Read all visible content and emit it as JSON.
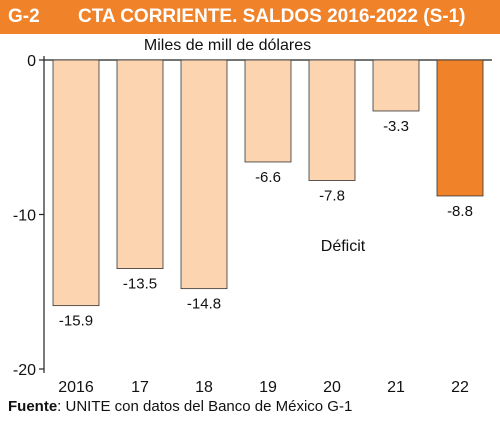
{
  "header": {
    "id": "G-2",
    "title": "CTA CORRIENTE. SALDOS 2016-2022 (S-1)"
  },
  "unit_label": "Miles de mill de dólares",
  "annotation": "Déficit",
  "source": {
    "label": "Fuente",
    "text": ": UNITE con datos del Banco de México G-1"
  },
  "colors": {
    "header_bg": "#f0822a",
    "bar": "#fcd4b0",
    "bar_highlight": "#f0822a",
    "bar_stroke": "#333333"
  },
  "chart_data": {
    "type": "bar",
    "categories": [
      "2016",
      "17",
      "18",
      "19",
      "20",
      "21",
      "22"
    ],
    "values": [
      -15.9,
      -13.5,
      -14.8,
      -6.6,
      -7.8,
      -3.3,
      -8.8
    ],
    "value_labels": [
      "-15.9",
      "-13.5",
      "-14.8",
      "-6.6",
      "-7.8",
      "-3.3",
      "-8.8"
    ],
    "highlight_index": 6,
    "ylim": [
      -20,
      0
    ],
    "yticks": [
      0,
      -10,
      -20
    ],
    "ytick_labels": [
      "0",
      "-10",
      "-20"
    ],
    "grid": false
  }
}
